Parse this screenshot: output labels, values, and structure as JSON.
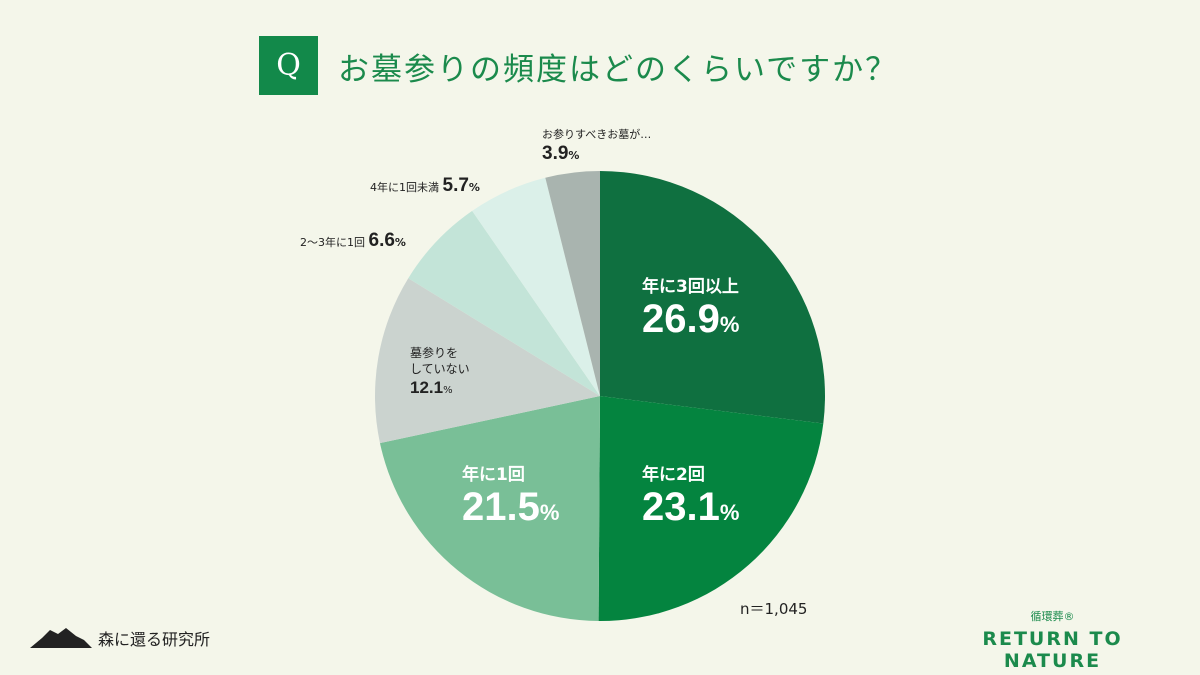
{
  "header": {
    "q": "Q",
    "title": "お墓参りの頻度はどのくらいですか？"
  },
  "chart_data": {
    "type": "pie",
    "title": "お墓参りの頻度はどのくらいですか？",
    "start": "top",
    "direction": "clockwise",
    "slices": [
      {
        "label": "年に3回以上",
        "value": 26.9,
        "color": "#0f7040"
      },
      {
        "label": "年に2回",
        "value": 23.1,
        "color": "#04843f"
      },
      {
        "label": "年に1回",
        "value": 21.5,
        "color": "#79bf97"
      },
      {
        "label": "墓参りをしていない",
        "value": 12.1,
        "color": "#cbd3cf"
      },
      {
        "label": "2〜3年に1回",
        "value": 6.6,
        "color": "#c3e4d8"
      },
      {
        "label": "4年に1回未満",
        "value": 5.7,
        "color": "#dbf0e9"
      },
      {
        "label": "お参りすべきお墓が…",
        "value": 3.9,
        "color": "#a9b4af"
      }
    ],
    "note": "n＝1,045"
  },
  "labels": {
    "l0": "年に3回以上",
    "l1": "年に2回",
    "l2": "年に1回",
    "l3a": "墓参りを",
    "l3b": "していない",
    "l4": "2〜3年に1回",
    "l5": "4年に1回未満",
    "l6": "お参りすべきお墓が…",
    "v0": "26.9",
    "v1": "23.1",
    "v2": "21.5",
    "v3": "12.1",
    "v4": "6.6",
    "v5": "5.7",
    "v6": "3.9",
    "pct": "%"
  },
  "footer": {
    "left_logo": "森に還る研究所",
    "right_sub": "循環葬®",
    "right_main": "RETURN TO NATURE"
  }
}
